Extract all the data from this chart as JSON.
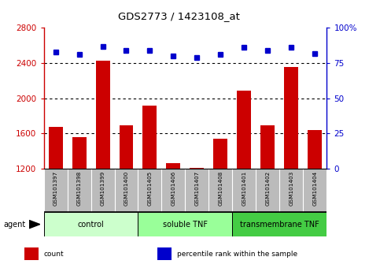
{
  "title": "GDS2773 / 1423108_at",
  "samples": [
    "GSM101397",
    "GSM101398",
    "GSM101399",
    "GSM101400",
    "GSM101405",
    "GSM101406",
    "GSM101407",
    "GSM101408",
    "GSM101401",
    "GSM101402",
    "GSM101403",
    "GSM101404"
  ],
  "counts": [
    1680,
    1560,
    2430,
    1690,
    1920,
    1260,
    1210,
    1545,
    2090,
    1690,
    2360,
    1640
  ],
  "percentile_ranks": [
    83,
    81,
    87,
    84,
    84,
    80,
    79,
    81,
    86,
    84,
    86,
    82
  ],
  "groups": [
    {
      "label": "control",
      "start": 0,
      "end": 3,
      "color": "#ccffcc"
    },
    {
      "label": "soluble TNF",
      "start": 4,
      "end": 7,
      "color": "#99ff99"
    },
    {
      "label": "transmembrane TNF",
      "start": 8,
      "end": 11,
      "color": "#44cc44"
    }
  ],
  "ylim_left": [
    1200,
    2800
  ],
  "ylim_right": [
    0,
    100
  ],
  "yticks_left": [
    1200,
    1600,
    2000,
    2400,
    2800
  ],
  "yticks_right": [
    0,
    25,
    50,
    75,
    100
  ],
  "bar_color": "#cc0000",
  "dot_color": "#0000cc",
  "bg_color": "#ffffff",
  "tick_area_color": "#bbbbbb",
  "left_tick_color": "#cc0000",
  "right_tick_color": "#0000cc",
  "legend_items": [
    {
      "label": "count",
      "color": "#cc0000"
    },
    {
      "label": "percentile rank within the sample",
      "color": "#0000cc"
    }
  ]
}
